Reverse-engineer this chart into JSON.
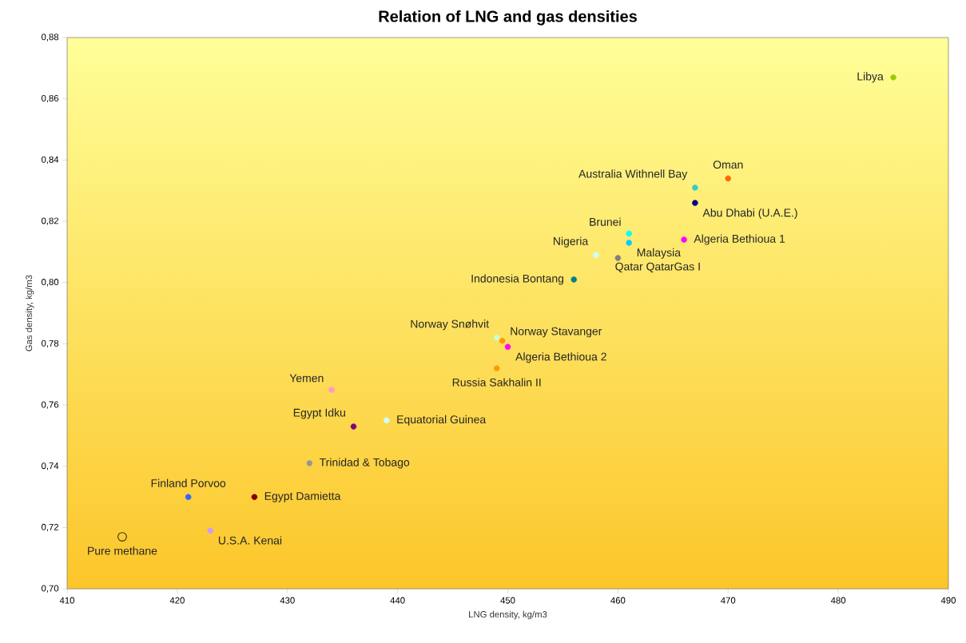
{
  "chart_data": {
    "type": "scatter",
    "title": "Relation of LNG and gas densities",
    "xlabel": "LNG density, kg/m3",
    "ylabel": "Gas density, kg/m3",
    "xlim": [
      410,
      490
    ],
    "ylim": [
      0.7,
      0.88
    ],
    "xticks": [
      410,
      420,
      430,
      440,
      450,
      460,
      470,
      480,
      490
    ],
    "yticks": [
      {
        "value": 0.7,
        "label": "0,70"
      },
      {
        "value": 0.72,
        "label": "0,72"
      },
      {
        "value": 0.74,
        "label": "0,74"
      },
      {
        "value": 0.76,
        "label": "0,76"
      },
      {
        "value": 0.78,
        "label": "0,78"
      },
      {
        "value": 0.8,
        "label": "0,80"
      },
      {
        "value": 0.82,
        "label": "0,82"
      },
      {
        "value": 0.84,
        "label": "0,84"
      },
      {
        "value": 0.86,
        "label": "0,86"
      },
      {
        "value": 0.88,
        "label": "0,88"
      }
    ],
    "marker": "circle",
    "series": [
      {
        "name": "Libya",
        "color": "#99cc00",
        "x": [
          485
        ],
        "values": [
          0.867
        ]
      },
      {
        "name": "Oman",
        "color": "#ff6600",
        "x": [
          470
        ],
        "values": [
          0.834
        ]
      },
      {
        "name": "Australia Withnell Bay",
        "color": "#33cccc",
        "x": [
          467
        ],
        "values": [
          0.831
        ]
      },
      {
        "name": "Abu Dhabi (U.A.E.)",
        "color": "#000080",
        "x": [
          467
        ],
        "values": [
          0.826
        ]
      },
      {
        "name": "Brunei",
        "color": "#00ffff",
        "x": [
          461
        ],
        "values": [
          0.816
        ]
      },
      {
        "name": "Malaysia",
        "color": "#00ccff",
        "x": [
          461
        ],
        "values": [
          0.813
        ]
      },
      {
        "name": "Algeria Bethioua 1",
        "color": "#ff00ff",
        "x": [
          466
        ],
        "values": [
          0.814
        ]
      },
      {
        "name": "Nigeria",
        "color": "#ccffff",
        "x": [
          458
        ],
        "values": [
          0.809
        ]
      },
      {
        "name": "Qatar QatarGas I",
        "color": "#808080",
        "x": [
          460
        ],
        "values": [
          0.808
        ]
      },
      {
        "name": "Indonesia Bontang",
        "color": "#008080",
        "x": [
          456
        ],
        "values": [
          0.801
        ]
      },
      {
        "name": "Norway Snøhvit",
        "color": "#ccffcc",
        "x": [
          449
        ],
        "values": [
          0.782
        ]
      },
      {
        "name": "Norway Stavanger",
        "color": "#ff9900",
        "x": [
          449.5
        ],
        "values": [
          0.781
        ]
      },
      {
        "name": "Algeria Bethioua 2",
        "color": "#ff00ff",
        "x": [
          450
        ],
        "values": [
          0.779
        ]
      },
      {
        "name": "Russia Sakhalin II",
        "color": "#ff9900",
        "x": [
          449
        ],
        "values": [
          0.772
        ]
      },
      {
        "name": "Yemen",
        "color": "#ff99cc",
        "x": [
          434
        ],
        "values": [
          0.765
        ]
      },
      {
        "name": "Equatorial Guinea",
        "color": "#ccffff",
        "x": [
          439
        ],
        "values": [
          0.755
        ]
      },
      {
        "name": "Egypt Idku",
        "color": "#800080",
        "x": [
          436
        ],
        "values": [
          0.753
        ]
      },
      {
        "name": "Trinidad & Tobago",
        "color": "#969696",
        "x": [
          432
        ],
        "values": [
          0.741
        ]
      },
      {
        "name": "Finland Porvoo",
        "color": "#3366ff",
        "x": [
          421
        ],
        "values": [
          0.73
        ]
      },
      {
        "name": "Egypt Damietta",
        "color": "#800000",
        "x": [
          427
        ],
        "values": [
          0.73
        ]
      },
      {
        "name": "U.S.A. Kenai",
        "color": "#cc99ff",
        "x": [
          423
        ],
        "values": [
          0.719
        ]
      },
      {
        "name": "Pure methane",
        "color": null,
        "x": [
          415
        ],
        "values": [
          0.717
        ]
      }
    ]
  }
}
